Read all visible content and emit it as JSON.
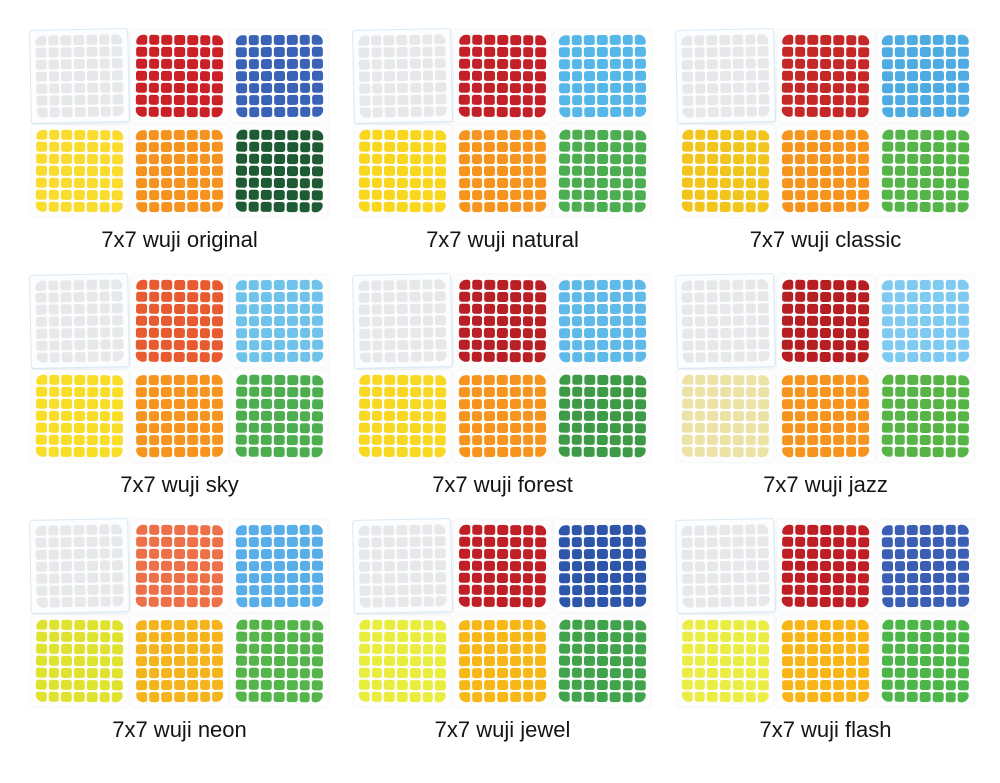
{
  "page": {
    "background": "#ffffff",
    "description_grid": "3x3 grid of 7x7 cube sticker-set product photos with captions"
  },
  "grid_size": 7,
  "stickers_per_sheet": 49,
  "sheet_layout": [
    "top-left",
    "top-middle",
    "top-right",
    "bottom-left",
    "bottom-middle",
    "bottom-right"
  ],
  "variants": [
    {
      "name": "7x7 wuji original",
      "sheets": [
        {
          "position": "top-left",
          "color_name": "white",
          "hex": "#e7e8e9"
        },
        {
          "position": "top-middle",
          "color_name": "red",
          "hex": "#cb2026"
        },
        {
          "position": "top-right",
          "color_name": "blue",
          "hex": "#3a63b8"
        },
        {
          "position": "bottom-left",
          "color_name": "yellow",
          "hex": "#f9dc2e"
        },
        {
          "position": "bottom-middle",
          "color_name": "orange",
          "hex": "#f6921e"
        },
        {
          "position": "bottom-right",
          "color_name": "green",
          "hex": "#1e5b34"
        }
      ]
    },
    {
      "name": "7x7 wuji natural",
      "sheets": [
        {
          "position": "top-left",
          "color_name": "white",
          "hex": "#e7e8e9"
        },
        {
          "position": "top-middle",
          "color_name": "red",
          "hex": "#c32127"
        },
        {
          "position": "top-right",
          "color_name": "blue",
          "hex": "#56b8e9"
        },
        {
          "position": "bottom-left",
          "color_name": "yellow",
          "hex": "#f9d71e"
        },
        {
          "position": "bottom-middle",
          "color_name": "orange",
          "hex": "#f7941d"
        },
        {
          "position": "bottom-right",
          "color_name": "green",
          "hex": "#4cae50"
        }
      ]
    },
    {
      "name": "7x7 wuji classic",
      "sheets": [
        {
          "position": "top-left",
          "color_name": "white",
          "hex": "#e7e8e9"
        },
        {
          "position": "top-middle",
          "color_name": "red",
          "hex": "#c62828"
        },
        {
          "position": "top-right",
          "color_name": "blue",
          "hex": "#4face2"
        },
        {
          "position": "bottom-left",
          "color_name": "yellow",
          "hex": "#f2c51d"
        },
        {
          "position": "bottom-middle",
          "color_name": "orange",
          "hex": "#f7941e"
        },
        {
          "position": "bottom-right",
          "color_name": "green",
          "hex": "#55b549"
        }
      ]
    },
    {
      "name": "7x7 wuji sky",
      "sheets": [
        {
          "position": "top-left",
          "color_name": "white",
          "hex": "#e7e8e9"
        },
        {
          "position": "top-middle",
          "color_name": "red",
          "hex": "#e85b31"
        },
        {
          "position": "top-right",
          "color_name": "blue",
          "hex": "#6fc3eb"
        },
        {
          "position": "bottom-left",
          "color_name": "yellow",
          "hex": "#f8de27"
        },
        {
          "position": "bottom-middle",
          "color_name": "orange",
          "hex": "#f7941d"
        },
        {
          "position": "bottom-right",
          "color_name": "green",
          "hex": "#4cae4e"
        }
      ]
    },
    {
      "name": "7x7 wuji forest",
      "sheets": [
        {
          "position": "top-left",
          "color_name": "white",
          "hex": "#e7e8e9"
        },
        {
          "position": "top-middle",
          "color_name": "red",
          "hex": "#b92025"
        },
        {
          "position": "top-right",
          "color_name": "blue",
          "hex": "#5fb9e9"
        },
        {
          "position": "bottom-left",
          "color_name": "yellow",
          "hex": "#f8d822"
        },
        {
          "position": "bottom-middle",
          "color_name": "orange",
          "hex": "#f7941d"
        },
        {
          "position": "bottom-right",
          "color_name": "green",
          "hex": "#3d9b47"
        }
      ]
    },
    {
      "name": "7x7 wuji jazz",
      "sheets": [
        {
          "position": "top-left",
          "color_name": "white",
          "hex": "#e7e8e9"
        },
        {
          "position": "top-middle",
          "color_name": "red",
          "hex": "#b71e22"
        },
        {
          "position": "top-right",
          "color_name": "blue",
          "hex": "#7ecaf1"
        },
        {
          "position": "bottom-left",
          "color_name": "yellow",
          "hex": "#ede2a6"
        },
        {
          "position": "bottom-middle",
          "color_name": "orange",
          "hex": "#f7941d"
        },
        {
          "position": "bottom-right",
          "color_name": "green",
          "hex": "#56b545"
        }
      ]
    },
    {
      "name": "7x7 wuji neon",
      "sheets": [
        {
          "position": "top-left",
          "color_name": "white",
          "hex": "#e7e8e9"
        },
        {
          "position": "top-middle",
          "color_name": "red",
          "hex": "#ee7048"
        },
        {
          "position": "top-right",
          "color_name": "blue",
          "hex": "#57aee8"
        },
        {
          "position": "bottom-left",
          "color_name": "yellow",
          "hex": "#dfe32f"
        },
        {
          "position": "bottom-middle",
          "color_name": "orange",
          "hex": "#f5b31c"
        },
        {
          "position": "bottom-right",
          "color_name": "green",
          "hex": "#54b54a"
        }
      ]
    },
    {
      "name": "7x7 wuji jewel",
      "sheets": [
        {
          "position": "top-left",
          "color_name": "white",
          "hex": "#e7e8e9"
        },
        {
          "position": "top-middle",
          "color_name": "red",
          "hex": "#c01f25"
        },
        {
          "position": "top-right",
          "color_name": "blue",
          "hex": "#2d55a9"
        },
        {
          "position": "bottom-left",
          "color_name": "yellow",
          "hex": "#e9ed3e"
        },
        {
          "position": "bottom-middle",
          "color_name": "orange",
          "hex": "#f7b717"
        },
        {
          "position": "bottom-right",
          "color_name": "green",
          "hex": "#41a34b"
        }
      ]
    },
    {
      "name": "7x7 wuji flash",
      "sheets": [
        {
          "position": "top-left",
          "color_name": "white",
          "hex": "#e7e8e9"
        },
        {
          "position": "top-middle",
          "color_name": "red",
          "hex": "#bf1f24"
        },
        {
          "position": "top-right",
          "color_name": "blue",
          "hex": "#3a5fb4"
        },
        {
          "position": "bottom-left",
          "color_name": "yellow",
          "hex": "#eaee44"
        },
        {
          "position": "bottom-middle",
          "color_name": "orange",
          "hex": "#f8b515"
        },
        {
          "position": "bottom-right",
          "color_name": "green",
          "hex": "#4cb648"
        }
      ]
    }
  ]
}
